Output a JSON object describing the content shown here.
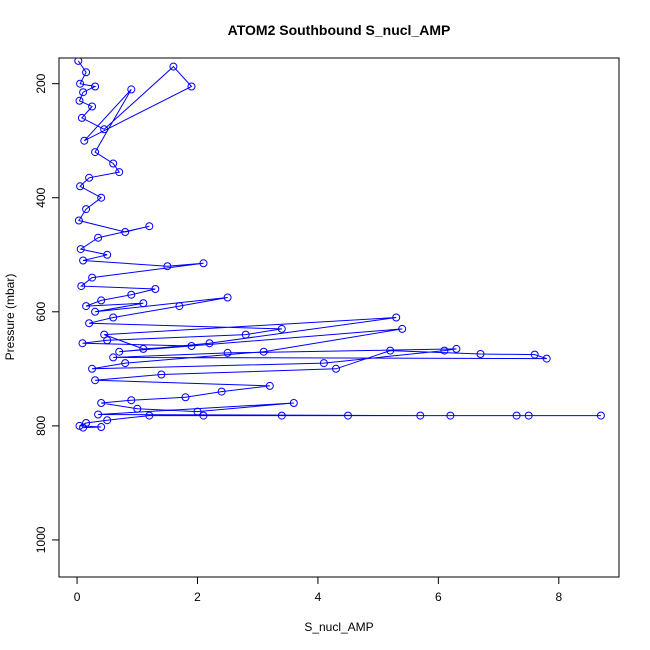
{
  "chart_data": {
    "type": "scatter",
    "title": "ATOM2 Southbound S_nucl_AMP",
    "xlabel": "S_nucl_AMP",
    "ylabel": "Pressure (mbar)",
    "xlim": [
      -0.3,
      9.0
    ],
    "ylim": [
      1065,
      155
    ],
    "y_reversed": true,
    "x_ticks": [
      0,
      2,
      4,
      6,
      8
    ],
    "y_ticks": [
      200,
      400,
      600,
      800,
      1000
    ],
    "grid": false,
    "legend": "none",
    "color": "#0000ff",
    "marker": "open-circle",
    "connected": true,
    "series": [
      {
        "x": [
          0.02,
          0.15,
          0.05,
          0.3,
          0.1,
          0.04,
          0.25,
          0.08,
          0.45,
          1.6,
          1.9,
          0.12,
          0.9,
          0.3,
          0.6,
          0.7,
          0.2,
          0.05,
          0.4,
          0.15,
          0.03,
          0.8,
          1.2,
          0.35,
          0.06,
          0.5,
          0.1,
          1.5,
          2.1,
          0.25,
          0.07,
          1.3,
          0.9,
          0.4,
          0.15,
          1.1,
          0.3,
          2.5,
          1.7,
          0.6,
          0.2,
          3.4,
          2.8,
          0.5,
          0.09,
          1.9,
          1.1,
          0.45,
          5.3,
          2.2,
          0.7,
          5.4,
          3.1,
          0.8,
          0.25,
          4.1,
          6.1,
          6.3,
          2.5,
          0.6,
          7.8,
          7.6,
          6.7,
          5.2,
          4.3,
          1.4,
          0.3,
          3.2,
          2.4,
          1.8,
          0.9,
          0.4,
          1.0,
          2.0,
          3.6,
          0.35,
          5.7,
          6.2,
          7.3,
          8.7,
          7.5,
          4.5,
          3.4,
          2.1,
          1.2,
          0.5,
          0.15,
          0.04,
          0.4,
          0.1
        ],
        "y": [
          160,
          180,
          200,
          205,
          215,
          230,
          240,
          260,
          280,
          170,
          205,
          300,
          210,
          320,
          340,
          355,
          365,
          380,
          400,
          420,
          440,
          460,
          450,
          470,
          490,
          500,
          510,
          520,
          515,
          540,
          555,
          560,
          570,
          580,
          590,
          585,
          600,
          575,
          590,
          610,
          620,
          630,
          640,
          650,
          655,
          660,
          665,
          640,
          610,
          655,
          670,
          630,
          670,
          690,
          700,
          690,
          668,
          665,
          672,
          680,
          682,
          675,
          674,
          668,
          700,
          710,
          720,
          730,
          740,
          750,
          755,
          760,
          770,
          775,
          760,
          780,
          782,
          782,
          782,
          782,
          782,
          782,
          782,
          782,
          782,
          790,
          795,
          800,
          802,
          803
        ]
      }
    ]
  }
}
